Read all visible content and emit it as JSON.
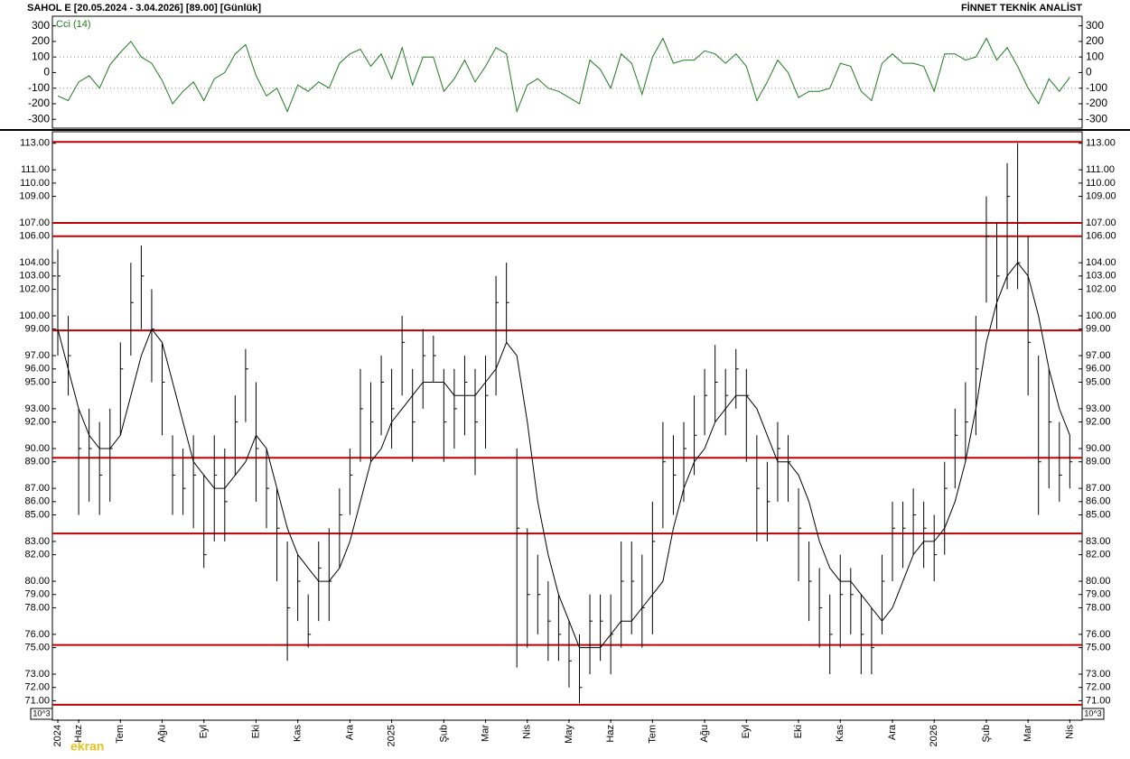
{
  "chart_data": {
    "type": "ohlc",
    "title": "SAHOL E  [20.05.2024 - 3.04.2026]  [89.00]  [Günlük]",
    "source": "FİNNET TEKNİK ANALİST",
    "unit_label": "10^3",
    "watermark": "ekran",
    "bar_color": "#000000",
    "categories": [
      "2024",
      null,
      "Haz",
      null,
      null,
      null,
      "Tem",
      null,
      null,
      null,
      "Ağu",
      null,
      null,
      null,
      "Eyl",
      null,
      null,
      null,
      null,
      "Eki",
      null,
      null,
      null,
      "Kas",
      null,
      null,
      null,
      null,
      "Ara",
      null,
      null,
      null,
      "2025",
      null,
      null,
      null,
      null,
      "Şub",
      null,
      null,
      null,
      "Mar",
      null,
      null,
      null,
      "Nis",
      null,
      null,
      null,
      "May",
      null,
      null,
      null,
      "Haz",
      null,
      null,
      null,
      "Tem",
      null,
      null,
      null,
      null,
      "Ağu",
      null,
      null,
      null,
      "Eyl",
      null,
      null,
      null,
      null,
      "Eki",
      null,
      null,
      null,
      "Kas",
      null,
      null,
      null,
      null,
      "Ara",
      null,
      null,
      null,
      "2026",
      null,
      null,
      null,
      null,
      "Şub",
      null,
      null,
      null,
      "Mar",
      null,
      null,
      null,
      "Nis"
    ],
    "high": [
      105,
      100,
      93,
      93,
      92,
      93,
      98,
      104,
      105.3,
      102,
      98,
      91,
      90,
      91,
      88,
      91,
      90,
      94,
      97.5,
      95,
      90,
      87,
      83,
      82,
      79,
      83,
      84,
      87,
      90,
      96,
      95,
      97,
      96,
      100,
      96,
      99,
      98.5,
      96,
      96,
      97,
      96,
      97,
      103,
      104,
      90,
      84,
      82,
      80,
      79,
      77,
      76,
      79,
      79,
      79,
      83,
      83,
      82,
      86,
      92,
      91,
      92,
      94,
      96,
      97.8,
      96,
      97.5,
      96,
      91,
      89,
      92,
      91,
      87,
      83,
      81,
      79,
      82,
      81,
      79,
      78,
      82,
      86,
      86,
      87,
      86,
      85,
      89,
      93,
      95,
      100,
      109,
      107,
      111.5,
      113,
      106,
      97,
      96,
      92,
      91
    ],
    "low": [
      97,
      94,
      85,
      86,
      85,
      86,
      91,
      97,
      99,
      95,
      91,
      85,
      85,
      84,
      81,
      83,
      83,
      88,
      92,
      86,
      84,
      80,
      74,
      77,
      75,
      77,
      77,
      81,
      85,
      89,
      89,
      91,
      90,
      94,
      89,
      93,
      95,
      89,
      90,
      91,
      88,
      90,
      94,
      98,
      73.5,
      75,
      76,
      74,
      74,
      72,
      70.8,
      73,
      74,
      73,
      75,
      76,
      75,
      76,
      84,
      85,
      86,
      88,
      91,
      92,
      91,
      93,
      89,
      83,
      83,
      86,
      86,
      80,
      77,
      75,
      73,
      75,
      76,
      73,
      73,
      76,
      80,
      81,
      82,
      81,
      80,
      82,
      87,
      89,
      91,
      101,
      99,
      102,
      102,
      94,
      85,
      87,
      86,
      87
    ],
    "close": [
      103,
      97,
      90,
      90,
      88,
      90,
      96,
      101,
      103,
      99,
      95,
      88,
      87,
      88,
      82,
      88,
      86,
      92,
      96,
      90,
      87,
      84,
      78,
      80,
      76,
      81,
      80,
      85,
      88,
      93,
      92,
      95,
      93,
      98,
      92,
      97,
      97,
      92,
      93,
      95,
      92,
      94,
      101,
      101,
      84,
      79,
      79,
      77,
      76,
      74,
      72,
      77,
      77,
      76,
      80,
      80,
      78,
      83,
      89,
      88,
      90,
      91,
      94,
      95,
      94,
      96,
      94,
      87,
      86,
      90,
      89,
      84,
      80,
      78,
      76,
      79,
      79,
      76,
      75,
      80,
      84,
      84,
      85,
      84,
      82,
      87,
      91,
      92,
      96,
      106,
      103,
      109,
      104,
      98,
      89,
      92,
      88,
      89
    ],
    "moving_average": {
      "color": "#000000",
      "values": [
        99,
        96,
        93,
        91,
        90,
        90,
        91,
        94,
        97,
        99,
        98,
        95,
        92,
        89,
        88,
        87,
        87,
        88,
        89,
        91,
        90,
        87,
        84,
        82,
        81,
        80,
        80,
        81,
        83,
        86,
        89,
        90,
        92,
        93,
        94,
        95,
        95,
        95,
        94,
        94,
        94,
        95,
        96,
        98,
        97,
        92,
        86,
        82,
        79,
        77,
        75,
        75,
        75,
        76,
        77,
        77,
        78,
        79,
        80,
        84,
        87,
        89,
        90,
        92,
        93,
        94,
        94,
        93,
        91,
        89,
        89,
        88,
        86,
        83,
        81,
        80,
        80,
        79,
        78,
        77,
        78,
        80,
        82,
        83,
        83,
        84,
        86,
        89,
        93,
        98,
        101,
        103,
        104,
        103,
        100,
        96,
        93,
        91
      ]
    },
    "levels": {
      "color": "#c00000",
      "values": [
        113.1,
        107,
        106,
        98.9,
        89.3,
        83.6,
        75.2,
        70.7
      ]
    },
    "ylim": [
      69.6,
      113.8
    ],
    "yticks": [
      {
        "value": 113,
        "label": "113.00"
      },
      {
        "value": 111,
        "label": "111.00"
      },
      {
        "value": 110,
        "label": "110.00"
      },
      {
        "value": 109,
        "label": "109.00"
      },
      {
        "value": 107,
        "label": "107.00"
      },
      {
        "value": 106,
        "label": "106.00"
      },
      {
        "value": 104,
        "label": "104.00"
      },
      {
        "value": 103,
        "label": "103.00"
      },
      {
        "value": 102,
        "label": "102.00"
      },
      {
        "value": 100,
        "label": "100.00"
      },
      {
        "value": 99,
        "label": "99.00"
      },
      {
        "value": 97,
        "label": "97.00"
      },
      {
        "value": 96,
        "label": "96.00"
      },
      {
        "value": 95,
        "label": "95.00"
      },
      {
        "value": 93,
        "label": "93.00"
      },
      {
        "value": 92,
        "label": "92.00"
      },
      {
        "value": 90,
        "label": "90.00"
      },
      {
        "value": 89,
        "label": "89.00"
      },
      {
        "value": 87,
        "label": "87.00"
      },
      {
        "value": 86,
        "label": "86.00"
      },
      {
        "value": 85,
        "label": "85.00"
      },
      {
        "value": 83,
        "label": "83.00"
      },
      {
        "value": 82,
        "label": "82.00"
      },
      {
        "value": 80,
        "label": "80.00"
      },
      {
        "value": 79,
        "label": "79.00"
      },
      {
        "value": 78,
        "label": "78.00"
      },
      {
        "value": 76,
        "label": "76.00"
      },
      {
        "value": 75,
        "label": "75.00"
      },
      {
        "value": 73,
        "label": "73.00"
      },
      {
        "value": 72,
        "label": "72.00"
      },
      {
        "value": 71,
        "label": "71.00"
      }
    ],
    "indicator": {
      "label": "Cci (14)",
      "color": "#1f7a1f",
      "ylim": [
        -345,
        350
      ],
      "yticks": [
        300,
        200,
        100,
        0,
        -100,
        -200,
        -300
      ],
      "levels": [
        100,
        -100
      ],
      "values": [
        -150,
        -180,
        -60,
        -20,
        -100,
        50,
        130,
        200,
        100,
        60,
        -50,
        -200,
        -120,
        -60,
        -180,
        -40,
        0,
        120,
        180,
        -20,
        -150,
        -100,
        -250,
        -80,
        -120,
        -60,
        -100,
        60,
        120,
        150,
        40,
        120,
        -40,
        160,
        -80,
        100,
        100,
        -120,
        -40,
        80,
        -60,
        40,
        160,
        120,
        -250,
        -80,
        -40,
        -100,
        -120,
        -160,
        -200,
        80,
        20,
        -100,
        120,
        60,
        -140,
        100,
        220,
        60,
        80,
        80,
        140,
        120,
        60,
        120,
        40,
        -180,
        -60,
        80,
        0,
        -160,
        -120,
        -120,
        -100,
        60,
        40,
        -120,
        -180,
        60,
        120,
        60,
        60,
        40,
        -120,
        120,
        120,
        80,
        100,
        220,
        80,
        160,
        40,
        -100,
        -200,
        -40,
        -120,
        -30
      ]
    }
  }
}
